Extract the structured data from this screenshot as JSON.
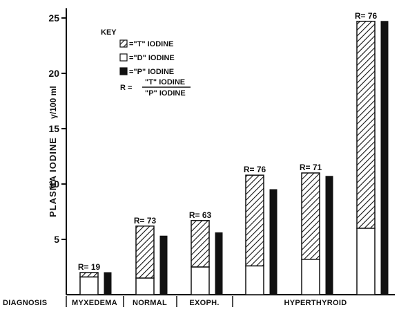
{
  "chart_data": {
    "type": "bar",
    "title": "",
    "ylabel": "PLASMA IODINE",
    "ylabel_unit": "γ/100 ml",
    "ylim": [
      0,
      26
    ],
    "yticks": [
      5,
      10,
      15,
      20,
      25
    ],
    "y_tick_labels": [
      "5",
      "10",
      "15",
      "20",
      "25"
    ],
    "xlabel": "DIAGNOSIS",
    "category_groups": [
      {
        "label": "MYXEDEMA",
        "bars": 1
      },
      {
        "label": "NORMAL",
        "bars": 1
      },
      {
        "label": "EXOPH.",
        "bars": 1
      },
      {
        "label": "HYPERTHYROID",
        "bars": 3
      }
    ],
    "key": {
      "title": "KEY",
      "entries": [
        {
          "text": "=\"T\" IODINE",
          "pattern": "hatched"
        },
        {
          "text": "=\"D\" IODINE",
          "pattern": "white"
        },
        {
          "text": "=\"P\" IODINE",
          "pattern": "black"
        }
      ],
      "ratio_lhs": "R =",
      "ratio_num": "\"T\" IODINE",
      "ratio_den": "\"P\" IODINE"
    },
    "series": [
      {
        "name": "\"D\" IODINE",
        "values": [
          1.6,
          1.5,
          2.5,
          2.6,
          3.2,
          6.0
        ]
      },
      {
        "name": "\"T\" IODINE",
        "values": [
          2.0,
          6.2,
          6.7,
          10.8,
          11.0,
          24.7
        ]
      },
      {
        "name": "\"P\" IODINE",
        "values": [
          2.0,
          5.3,
          5.6,
          9.5,
          10.7,
          24.7
        ]
      }
    ],
    "r_labels": [
      "R= 19",
      "R= 73",
      "R= 63",
      "R= 76",
      "R= 71",
      "R= 76"
    ]
  }
}
